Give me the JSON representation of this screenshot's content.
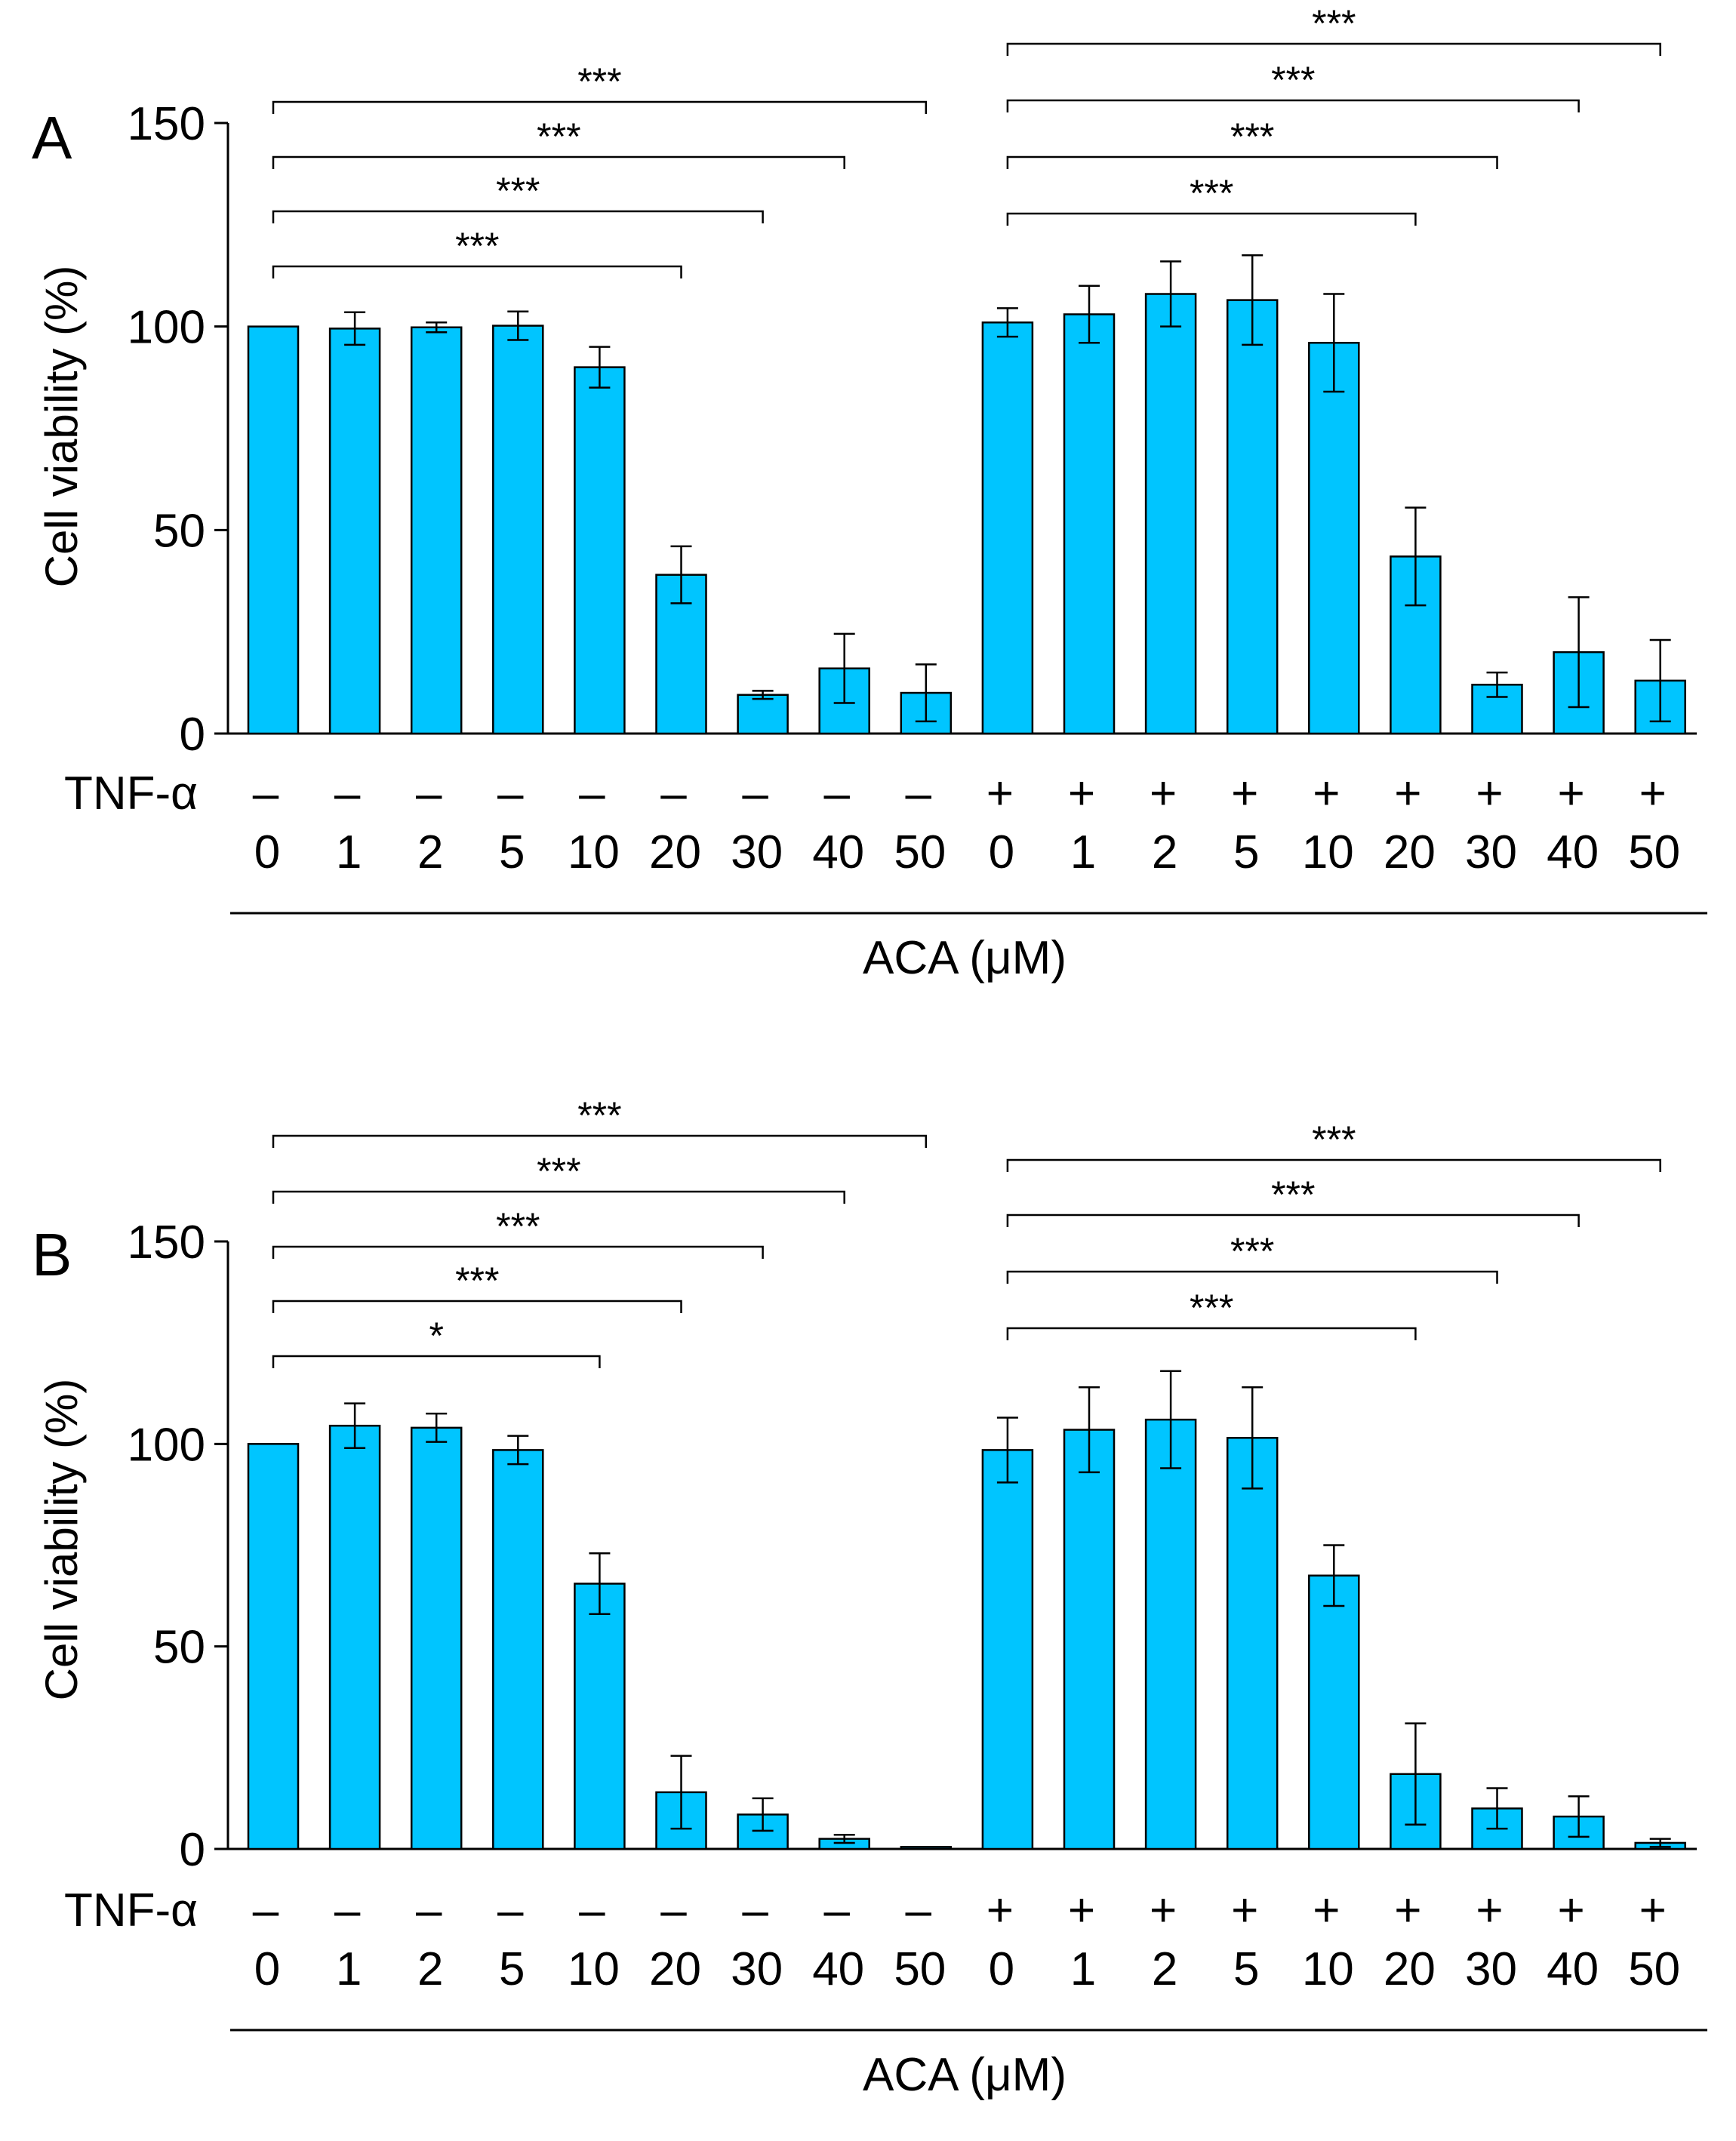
{
  "chart_data": [
    {
      "type": "bar",
      "panel_label": "A",
      "ylabel": "Cell viability (%)",
      "xlabel": "ACA (μM)",
      "ylim": [
        0,
        150
      ],
      "yticks": [
        "0",
        "50",
        "100",
        "150"
      ],
      "row_label": "TNF-α",
      "treatment": [
        "–",
        "–",
        "–",
        "–",
        "–",
        "–",
        "–",
        "–",
        "–",
        "+",
        "+",
        "+",
        "+",
        "+",
        "+",
        "+",
        "+",
        "+"
      ],
      "categories": [
        "0",
        "1",
        "2",
        "5",
        "10",
        "20",
        "30",
        "40",
        "50",
        "0",
        "1",
        "2",
        "5",
        "10",
        "20",
        "30",
        "40",
        "50"
      ],
      "values": [
        100,
        99.5,
        99.8,
        100.2,
        90,
        39,
        9.5,
        16,
        10,
        101,
        103,
        108,
        106.5,
        96,
        43.5,
        12,
        20,
        13
      ],
      "errors": [
        0,
        4,
        1.2,
        3.5,
        5,
        7,
        1,
        8.5,
        7,
        3.5,
        7,
        8,
        11,
        12,
        12,
        3,
        13.5,
        10
      ],
      "significance": [
        {
          "from": 0,
          "to": 5,
          "label": "***"
        },
        {
          "from": 0,
          "to": 6,
          "label": "***"
        },
        {
          "from": 0,
          "to": 7,
          "label": "***"
        },
        {
          "from": 0,
          "to": 8,
          "label": "***"
        },
        {
          "from": 9,
          "to": 14,
          "label": "***"
        },
        {
          "from": 9,
          "to": 15,
          "label": "***"
        },
        {
          "from": 9,
          "to": 16,
          "label": "***"
        },
        {
          "from": 9,
          "to": 17,
          "label": "***"
        }
      ],
      "bar_color": "#00c5ff"
    },
    {
      "type": "bar",
      "panel_label": "B",
      "ylabel": "Cell viability (%)",
      "xlabel": "ACA (μM)",
      "ylim": [
        0,
        150
      ],
      "yticks": [
        "0",
        "50",
        "100",
        "150"
      ],
      "row_label": "TNF-α",
      "treatment": [
        "–",
        "–",
        "–",
        "–",
        "–",
        "–",
        "–",
        "–",
        "–",
        "+",
        "+",
        "+",
        "+",
        "+",
        "+",
        "+",
        "+",
        "+"
      ],
      "categories": [
        "0",
        "1",
        "2",
        "5",
        "10",
        "20",
        "30",
        "40",
        "50",
        "0",
        "1",
        "2",
        "5",
        "10",
        "20",
        "30",
        "40",
        "50"
      ],
      "values": [
        100,
        104.5,
        104,
        98.5,
        65.5,
        14,
        8.5,
        2.5,
        0.5,
        98.5,
        103.5,
        106,
        101.5,
        67.5,
        18.5,
        10,
        8,
        1.5
      ],
      "errors": [
        0,
        5.5,
        3.5,
        3.5,
        7.5,
        9,
        4,
        1,
        0,
        8,
        10.5,
        12,
        12.5,
        7.5,
        12.5,
        5,
        5,
        1
      ],
      "significance": [
        {
          "from": 0,
          "to": 4,
          "label": "*"
        },
        {
          "from": 0,
          "to": 5,
          "label": "***"
        },
        {
          "from": 0,
          "to": 6,
          "label": "***"
        },
        {
          "from": 0,
          "to": 7,
          "label": "***"
        },
        {
          "from": 0,
          "to": 8,
          "label": "***"
        },
        {
          "from": 9,
          "to": 14,
          "label": "***"
        },
        {
          "from": 9,
          "to": 15,
          "label": "***"
        },
        {
          "from": 9,
          "to": 16,
          "label": "***"
        },
        {
          "from": 9,
          "to": 17,
          "label": "***"
        }
      ],
      "bar_color": "#00c5ff"
    }
  ]
}
